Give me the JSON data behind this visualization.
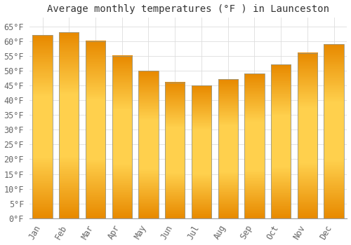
{
  "title": "Average monthly temperatures (°F ) in Launceston",
  "months": [
    "Jan",
    "Feb",
    "Mar",
    "Apr",
    "May",
    "Jun",
    "Jul",
    "Aug",
    "Sep",
    "Oct",
    "Nov",
    "Dec"
  ],
  "values": [
    62,
    63,
    60,
    55,
    50,
    46,
    45,
    47,
    49,
    52,
    56,
    59
  ],
  "bar_color_light": "#FFD04D",
  "bar_color_dark": "#E88A00",
  "bar_edge_color": "#999988",
  "background_color": "#FFFFFF",
  "grid_color": "#DDDDDD",
  "ylim": [
    0,
    68
  ],
  "yticks": [
    0,
    5,
    10,
    15,
    20,
    25,
    30,
    35,
    40,
    45,
    50,
    55,
    60,
    65
  ],
  "title_fontsize": 10,
  "tick_fontsize": 8.5,
  "tick_font": "monospace",
  "bar_width": 0.75
}
